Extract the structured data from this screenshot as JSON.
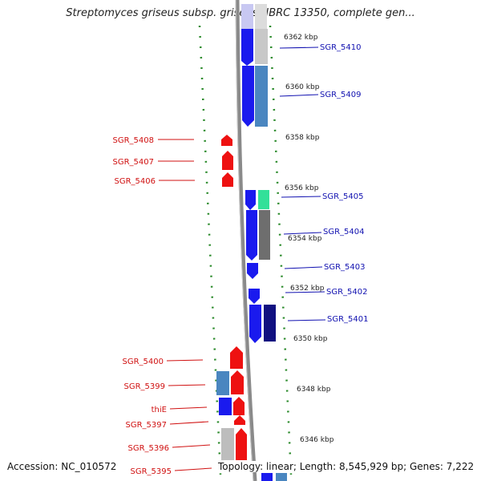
{
  "title": "Streptomyces griseus subsp. griseus NBRC 13350, complete gen...",
  "accession": "Accession: NC_010572",
  "stats": "Topology: linear; Length: 8,545,929 bp; Genes: 7,222",
  "colors": {
    "forward": "#1a1aee",
    "reverse": "#ee1111",
    "backbone": "#8a8a8a",
    "tick": "#2a8a2a",
    "left_label": "#d01010",
    "right_label": "#1010b0"
  },
  "scale_labels": [
    "6362 kbp",
    "6360 kbp",
    "6358 kbp",
    "6356 kbp",
    "6354 kbp",
    "6352 kbp",
    "6350 kbp",
    "6348 kbp",
    "6346 kbp"
  ],
  "left_genes": [
    "SGR_5408",
    "SGR_5407",
    "SGR_5406",
    "SGR_5400",
    "SGR_5399",
    "thiE",
    "SGR_5397",
    "SGR_5396",
    "SGR_5395"
  ],
  "right_genes": [
    "SGR_5410",
    "SGR_5409",
    "SGR_5405",
    "SGR_5404",
    "SGR_5403",
    "SGR_5402",
    "SGR_5401"
  ]
}
